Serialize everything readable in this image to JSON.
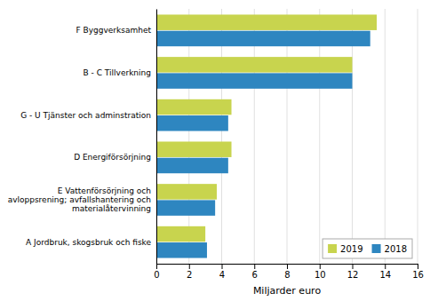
{
  "chart_data": {
    "type": "bar",
    "orientation": "horizontal",
    "categories": [
      "F Byggverksamhet",
      "B - C Tillverkning",
      "G - U Tjänster och adminstration",
      "D Energiförsörjning",
      "E Vattenförsörjning och\navloppsrening; avfallshantering och\nmaterialåtervinning",
      "A Jordbruk, skogsbruk och fiske"
    ],
    "series": [
      {
        "name": "2019",
        "color": "#c8d44e",
        "values": [
          13.5,
          12.0,
          4.6,
          4.6,
          3.7,
          3.0
        ]
      },
      {
        "name": "2018",
        "color": "#2e86c0",
        "values": [
          13.1,
          12.0,
          4.4,
          4.4,
          3.6,
          3.1
        ]
      }
    ],
    "xlabel": "Miljarder euro",
    "xlim": [
      0,
      16
    ],
    "xticks": [
      0,
      2,
      4,
      6,
      8,
      10,
      12,
      14,
      16
    ],
    "grid": true,
    "legend": "lower right"
  }
}
